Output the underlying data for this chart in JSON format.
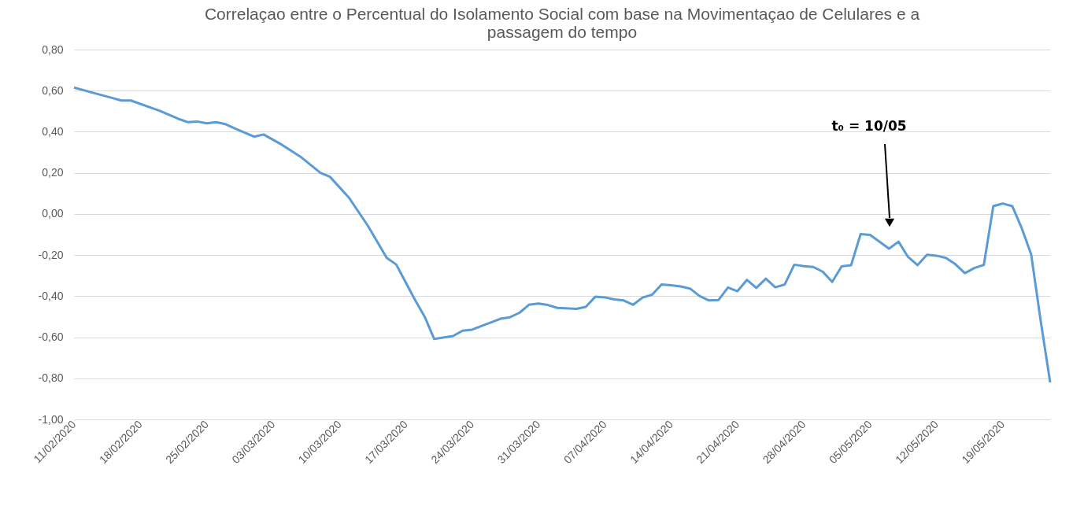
{
  "chart_data": {
    "type": "line",
    "title": "Correlaçao entre o Percentual do Isolamento Social com base na Movimentaçao de Celulares e a passagem do tempo",
    "x": [
      "2020-02-11",
      "2020-02-13",
      "2020-02-15",
      "2020-02-16",
      "2020-02-17",
      "2020-02-20",
      "2020-02-22",
      "2020-02-23",
      "2020-02-24",
      "2020-02-25",
      "2020-02-26",
      "2020-02-27",
      "2020-02-28",
      "2020-03-01",
      "2020-03-02",
      "2020-03-04",
      "2020-03-06",
      "2020-03-08",
      "2020-03-09",
      "2020-03-11",
      "2020-03-13",
      "2020-03-15",
      "2020-03-16",
      "2020-03-18",
      "2020-03-19",
      "2020-03-20",
      "2020-03-22",
      "2020-03-23",
      "2020-03-24",
      "2020-03-27",
      "2020-03-28",
      "2020-03-29",
      "2020-03-30",
      "2020-03-31",
      "2020-04-01",
      "2020-04-02",
      "2020-04-04",
      "2020-04-05",
      "2020-04-06",
      "2020-04-07",
      "2020-04-08",
      "2020-04-09",
      "2020-04-10",
      "2020-04-11",
      "2020-04-12",
      "2020-04-13",
      "2020-04-14",
      "2020-04-15",
      "2020-04-16",
      "2020-04-17",
      "2020-04-18",
      "2020-04-19",
      "2020-04-20",
      "2020-04-21",
      "2020-04-22",
      "2020-04-23",
      "2020-04-24",
      "2020-04-25",
      "2020-04-26",
      "2020-04-27",
      "2020-04-28",
      "2020-04-29",
      "2020-04-30",
      "2020-05-01",
      "2020-05-02",
      "2020-05-03",
      "2020-05-04",
      "2020-05-05",
      "2020-05-07",
      "2020-05-08",
      "2020-05-09",
      "2020-05-10",
      "2020-05-11",
      "2020-05-12",
      "2020-05-13",
      "2020-05-14",
      "2020-05-15",
      "2020-05-16",
      "2020-05-17",
      "2020-05-18",
      "2020-05-19",
      "2020-05-20",
      "2020-05-21",
      "2020-05-22",
      "2020-05-23",
      "2020-05-24"
    ],
    "series": [
      {
        "color": "#5b9bd5",
        "values": [
          0.615,
          0.59,
          0.565,
          0.552,
          0.552,
          0.503,
          0.463,
          0.447,
          0.45,
          0.441,
          0.447,
          0.437,
          0.416,
          0.376,
          0.387,
          0.335,
          0.275,
          0.2,
          0.181,
          0.08,
          -0.057,
          -0.214,
          -0.246,
          -0.42,
          -0.5,
          -0.608,
          -0.594,
          -0.568,
          -0.563,
          -0.51,
          -0.503,
          -0.481,
          -0.442,
          -0.436,
          -0.443,
          -0.457,
          -0.462,
          -0.452,
          -0.403,
          -0.406,
          -0.416,
          -0.421,
          -0.442,
          -0.407,
          -0.393,
          -0.343,
          -0.347,
          -0.353,
          -0.363,
          -0.399,
          -0.421,
          -0.419,
          -0.358,
          -0.376,
          -0.321,
          -0.36,
          -0.315,
          -0.357,
          -0.343,
          -0.247,
          -0.254,
          -0.258,
          -0.281,
          -0.331,
          -0.255,
          -0.249,
          -0.098,
          -0.102,
          -0.169,
          -0.135,
          -0.209,
          -0.249,
          -0.199,
          -0.203,
          -0.214,
          -0.245,
          -0.288,
          -0.263,
          -0.248,
          0.038,
          0.051,
          0.038,
          -0.069,
          -0.198,
          -0.52,
          -0.82
        ]
      }
    ],
    "xlim": [
      "2020-02-11",
      "2020-05-24"
    ],
    "xticks": [
      {
        "value": "2020-02-11",
        "label": "11/02/2020"
      },
      {
        "value": "2020-02-18",
        "label": "18/02/2020"
      },
      {
        "value": "2020-02-25",
        "label": "25/02/2020"
      },
      {
        "value": "2020-03-03",
        "label": "03/03/2020"
      },
      {
        "value": "2020-03-10",
        "label": "10/03/2020"
      },
      {
        "value": "2020-03-17",
        "label": "17/03/2020"
      },
      {
        "value": "2020-03-24",
        "label": "24/03/2020"
      },
      {
        "value": "2020-03-31",
        "label": "31/03/2020"
      },
      {
        "value": "2020-04-07",
        "label": "07/04/2020"
      },
      {
        "value": "2020-04-14",
        "label": "14/04/2020"
      },
      {
        "value": "2020-04-21",
        "label": "21/04/2020"
      },
      {
        "value": "2020-04-28",
        "label": "28/04/2020"
      },
      {
        "value": "2020-05-05",
        "label": "05/05/2020"
      },
      {
        "value": "2020-05-12",
        "label": "12/05/2020"
      },
      {
        "value": "2020-05-19",
        "label": "19/05/2020"
      }
    ],
    "ylim": [
      -1.0,
      0.8
    ],
    "yticks": [
      {
        "value": -1.0,
        "label": "-1,00"
      },
      {
        "value": -0.8,
        "label": "-0,80"
      },
      {
        "value": -0.6,
        "label": "-0,60"
      },
      {
        "value": -0.4,
        "label": "-0,40"
      },
      {
        "value": -0.2,
        "label": "-0,20"
      },
      {
        "value": 0.0,
        "label": "0,00"
      },
      {
        "value": 0.2,
        "label": "0,20"
      },
      {
        "value": 0.4,
        "label": "0,40"
      },
      {
        "value": 0.6,
        "label": "0,60"
      },
      {
        "value": 0.8,
        "label": "0,80"
      }
    ],
    "grid": "y",
    "annotations": [
      "t₀ = 10/05"
    ]
  }
}
